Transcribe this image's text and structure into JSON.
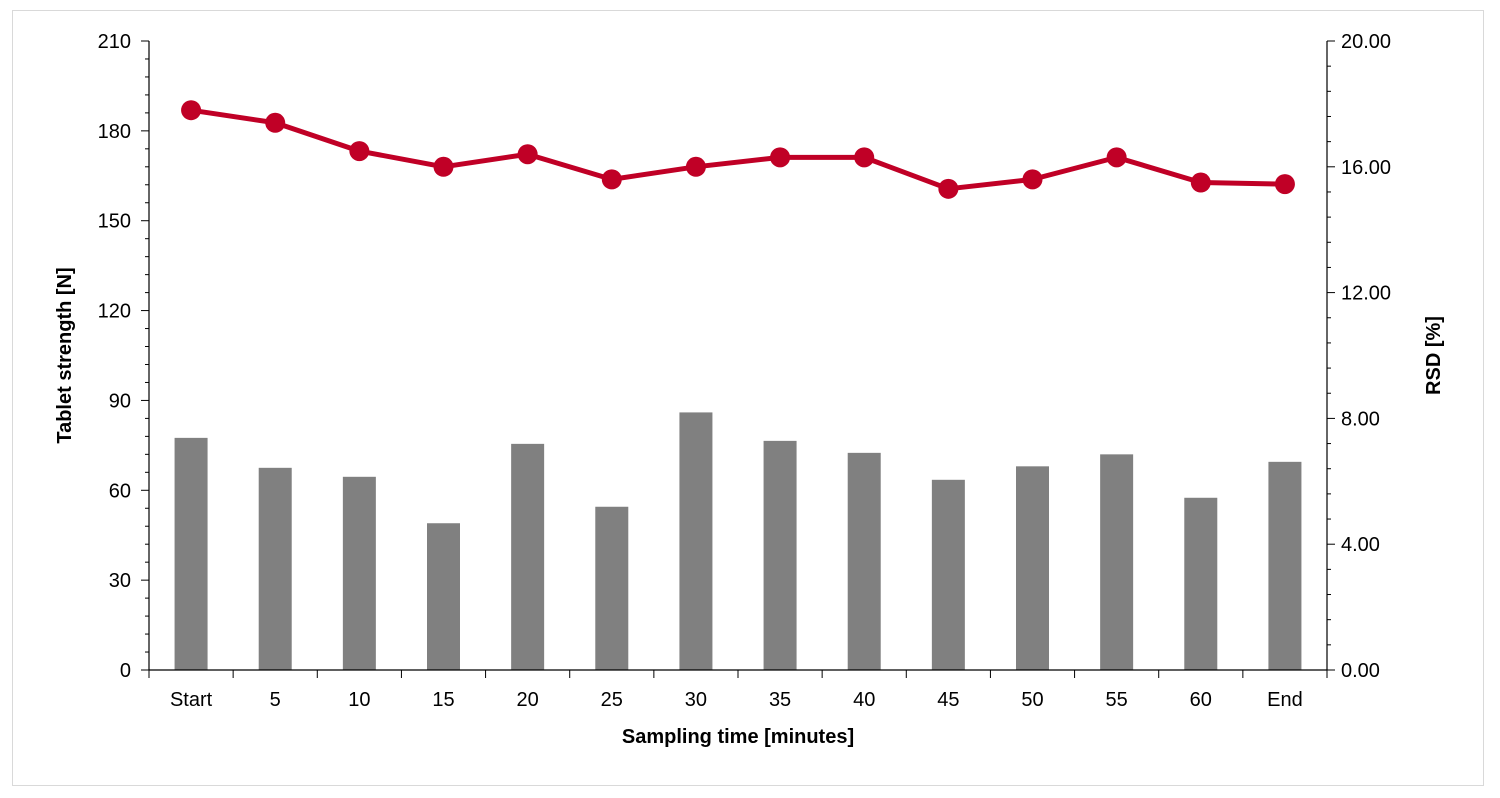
{
  "chart_data": {
    "type": "bar",
    "categories": [
      "Start",
      "5",
      "10",
      "15",
      "20",
      "25",
      "30",
      "35",
      "40",
      "45",
      "50",
      "55",
      "60",
      "End"
    ],
    "series": [
      {
        "kind": "bar",
        "axis": "left",
        "values": [
          77.5,
          67.5,
          64.5,
          49,
          75.5,
          54.5,
          86,
          76.5,
          72.5,
          63.5,
          68,
          72,
          57.5,
          69.5
        ],
        "color": "#808080"
      },
      {
        "kind": "line",
        "axis": "right",
        "values": [
          17.8,
          17.4,
          16.5,
          16.0,
          16.4,
          15.6,
          16.0,
          16.3,
          16.3,
          15.3,
          15.6,
          16.3,
          15.5,
          15.45
        ],
        "color": "#c00026"
      }
    ],
    "xlabel": "Sampling time [minutes]",
    "ylabel": "Tablet strength [N]",
    "y2label": "RSD [%]",
    "ylim": [
      0,
      210
    ],
    "yticks": [
      "0",
      "30",
      "60",
      "90",
      "120",
      "150",
      "180",
      "210"
    ],
    "y2lim": [
      0,
      20
    ],
    "y2ticks": [
      "0.00",
      "4.00",
      "8.00",
      "12.00",
      "16.00",
      "20.00"
    ],
    "grid": false,
    "legend": "none"
  }
}
